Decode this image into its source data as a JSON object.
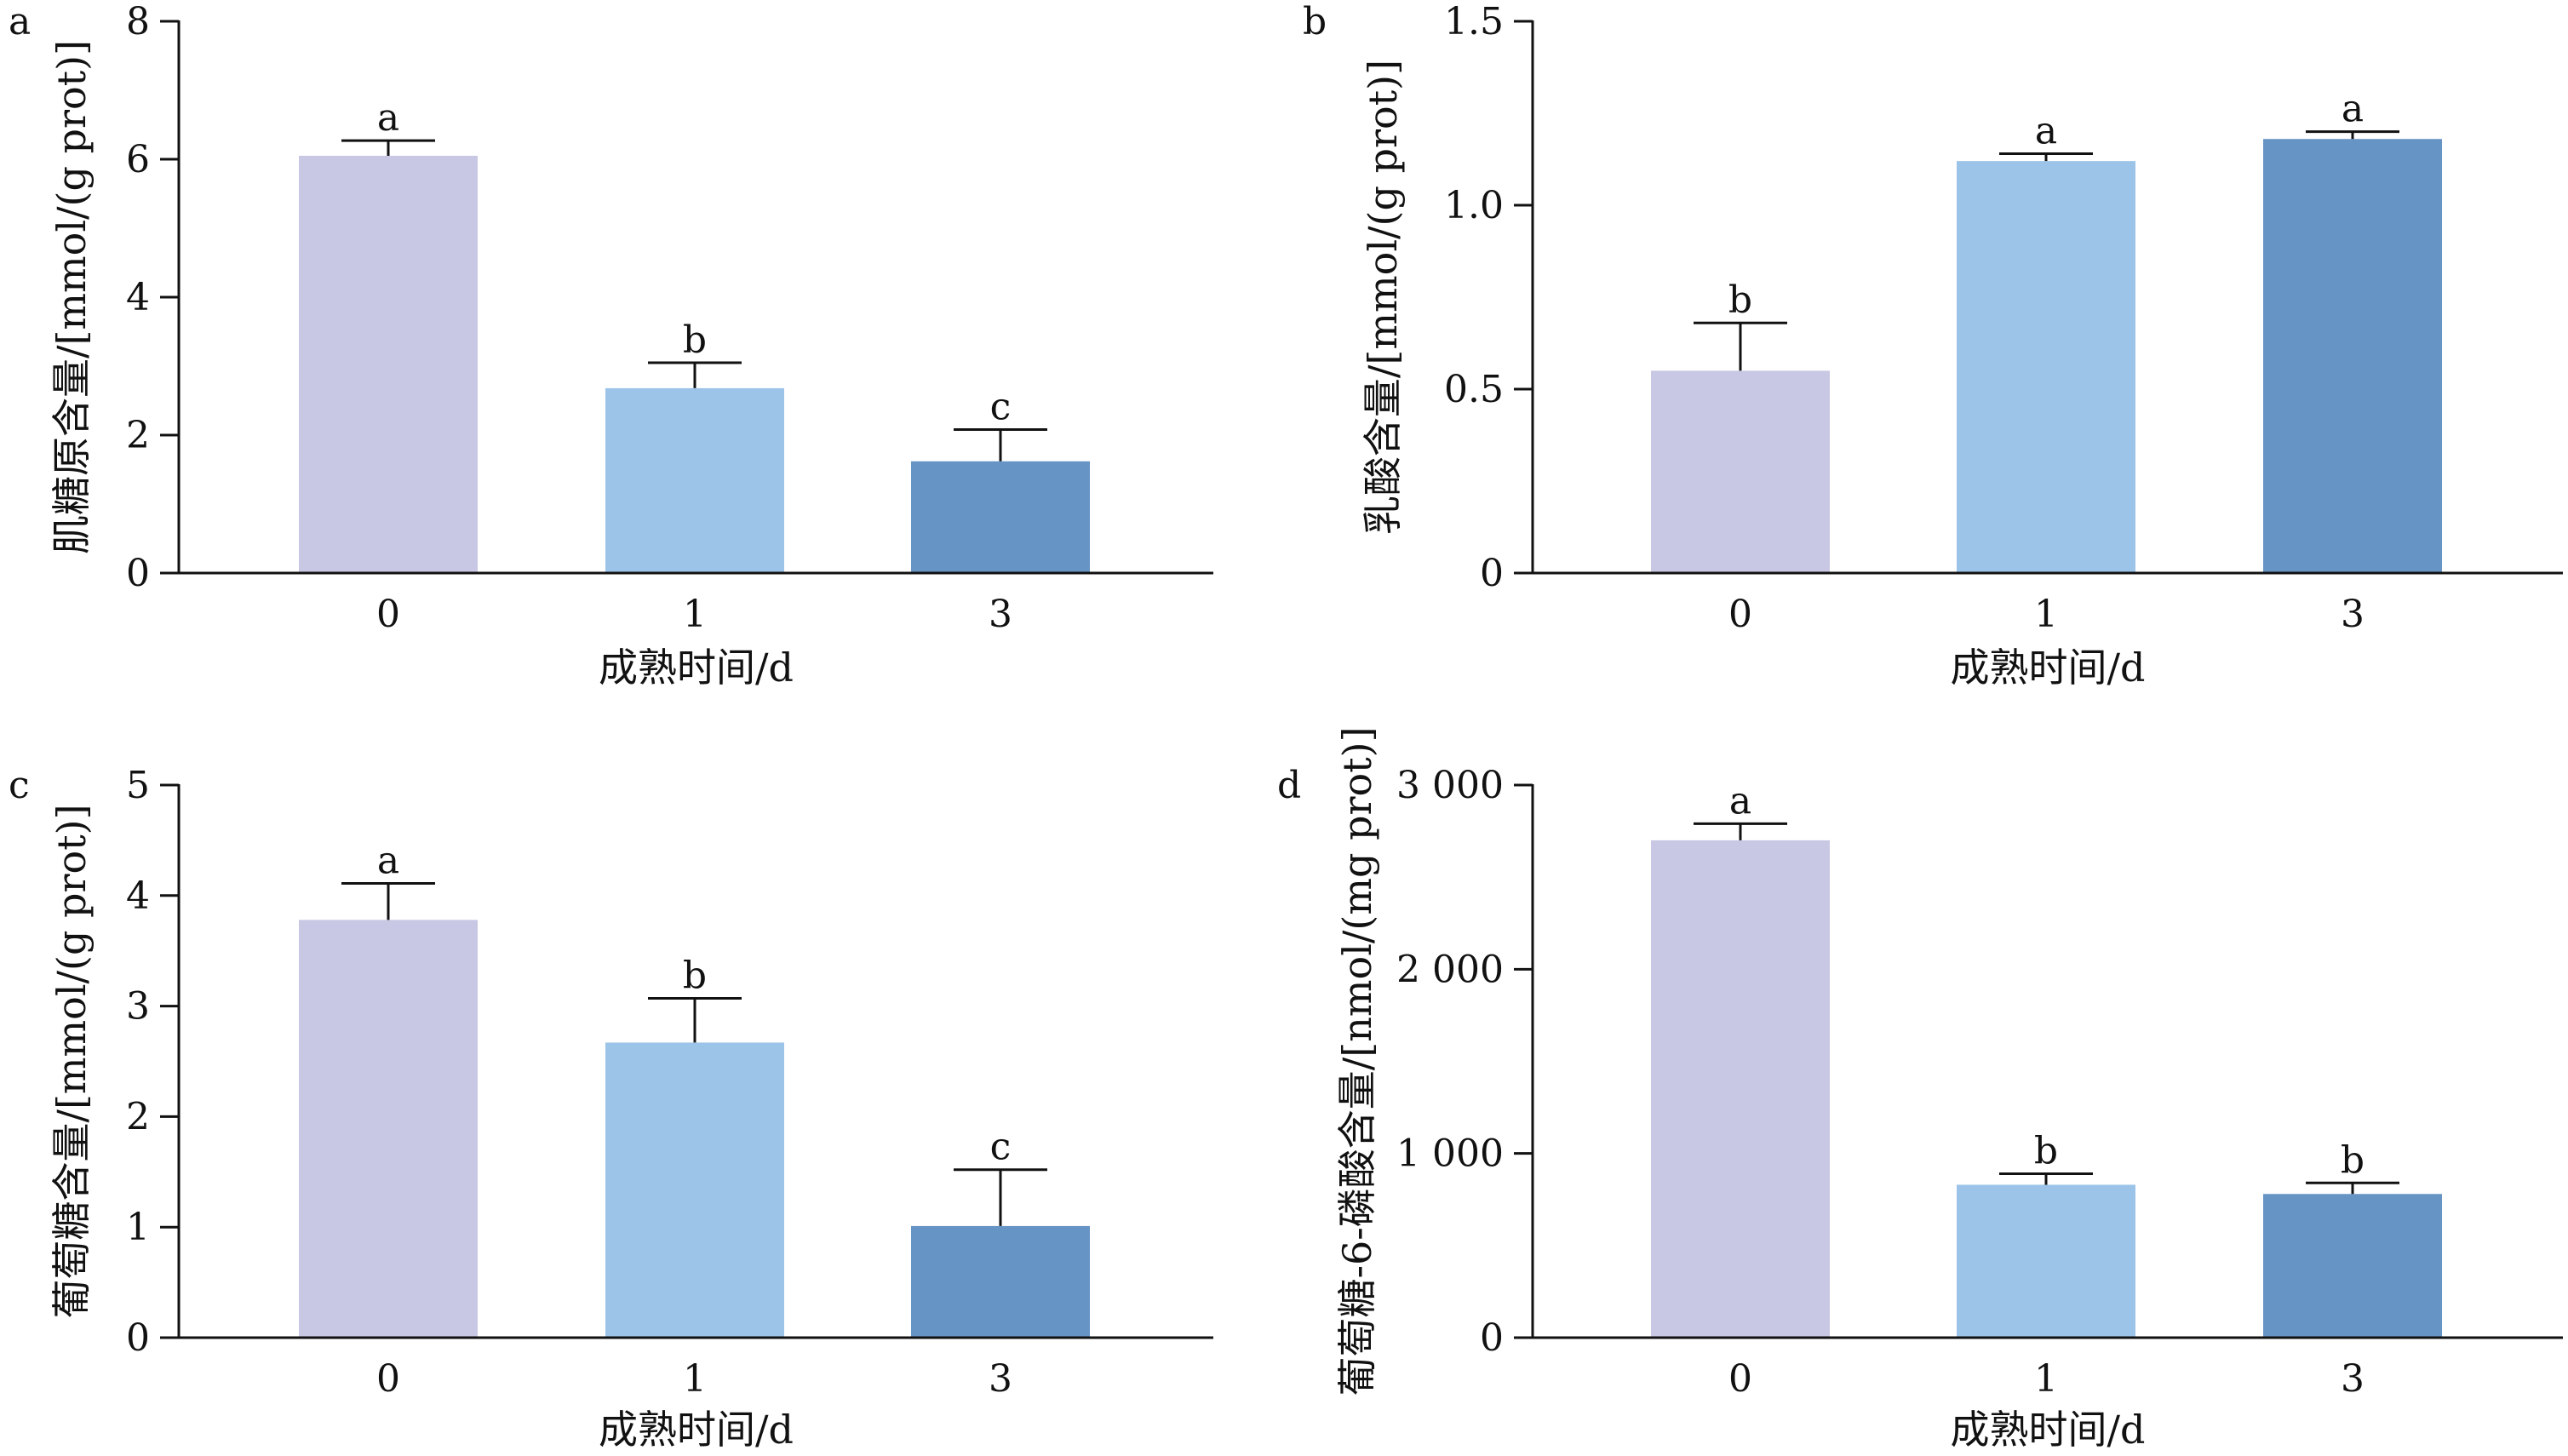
{
  "chart_data": [
    {
      "type": "bar",
      "panel_label": "a",
      "categories": [
        "0",
        "1",
        "3"
      ],
      "values": [
        6.05,
        2.68,
        1.62
      ],
      "errors": [
        0.22,
        0.37,
        0.46
      ],
      "significance": [
        "a",
        "b",
        "c"
      ],
      "colors": [
        "#c8c8e4",
        "#9bc4e8",
        "#6694c4"
      ],
      "xlabel": "成熟时间/d",
      "ylabel": "肌糖原含量/[mmol/(g prot)]",
      "ylim": [
        0,
        8
      ],
      "yticks": [
        0,
        2,
        4,
        6,
        8
      ],
      "ytick_labels": [
        "0",
        "2",
        "4",
        "6",
        "8"
      ]
    },
    {
      "type": "bar",
      "panel_label": "b",
      "categories": [
        "0",
        "1",
        "3"
      ],
      "values": [
        0.55,
        1.12,
        1.18
      ],
      "errors": [
        0.13,
        0.02,
        0.02
      ],
      "significance": [
        "b",
        "a",
        "a"
      ],
      "colors": [
        "#c8c8e4",
        "#9bc4e8",
        "#6694c4"
      ],
      "xlabel": "成熟时间/d",
      "ylabel": "乳酸含量/[mmol/(g prot)]",
      "ylim": [
        0,
        1.5
      ],
      "yticks": [
        0,
        0.5,
        1.0,
        1.5
      ],
      "ytick_labels": [
        "0",
        "0.5",
        "1.0",
        "1.5"
      ]
    },
    {
      "type": "bar",
      "panel_label": "c",
      "categories": [
        "0",
        "1",
        "3"
      ],
      "values": [
        3.78,
        2.67,
        1.01
      ],
      "errors": [
        0.33,
        0.4,
        0.51
      ],
      "significance": [
        "a",
        "b",
        "c"
      ],
      "colors": [
        "#c8c8e4",
        "#9bc4e8",
        "#6694c4"
      ],
      "xlabel": "成熟时间/d",
      "ylabel": "葡萄糖含量/[mmol/(g prot)]",
      "ylim": [
        0,
        5
      ],
      "yticks": [
        0,
        1,
        2,
        3,
        4,
        5
      ],
      "ytick_labels": [
        "0",
        "1",
        "2",
        "3",
        "4",
        "5"
      ]
    },
    {
      "type": "bar",
      "panel_label": "d",
      "categories": [
        "0",
        "1",
        "3"
      ],
      "values": [
        2700,
        830,
        780
      ],
      "errors": [
        90,
        60,
        60
      ],
      "significance": [
        "a",
        "b",
        "b"
      ],
      "colors": [
        "#c8c8e4",
        "#9bc4e8",
        "#6694c4"
      ],
      "xlabel": "成熟时间/d",
      "ylabel": "葡萄糖-6-磷酸含量/[nmol/(mg prot)]",
      "ylim": [
        0,
        3000
      ],
      "yticks": [
        0,
        1000,
        2000,
        3000
      ],
      "ytick_labels": [
        "0",
        "1 000",
        "2 000",
        "3 000"
      ]
    }
  ]
}
